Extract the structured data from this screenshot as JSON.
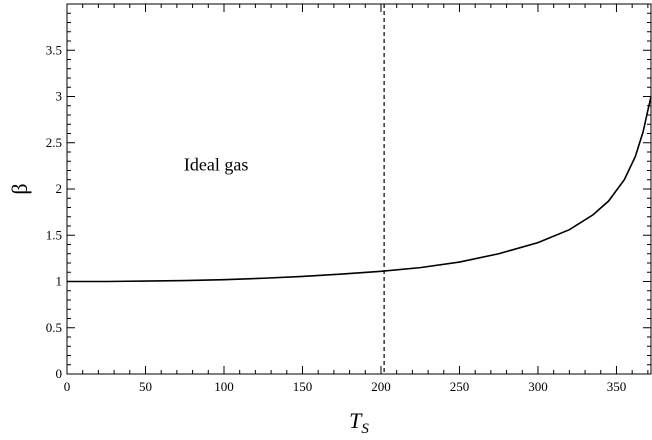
{
  "chart_data": {
    "type": "line",
    "xlabel": "T",
    "xlabel_sub": "S",
    "ylabel": "β",
    "xlim": [
      0,
      372
    ],
    "ylim": [
      0,
      4
    ],
    "xticks": [
      0,
      50,
      100,
      150,
      200,
      250,
      300,
      350
    ],
    "yticks": [
      0,
      0.5,
      1,
      1.5,
      2,
      2.5,
      3,
      3.5
    ],
    "xtick_labels": [
      "0",
      "50",
      "100",
      "150",
      "200",
      "250",
      "300",
      "350"
    ],
    "ytick_labels": [
      "0",
      "0.5",
      "1",
      "1.5",
      "2",
      "2.5",
      "3",
      "3.5"
    ],
    "grid": false,
    "series": [
      {
        "x": [
          0,
          25,
          50,
          75,
          100,
          125,
          150,
          175,
          200,
          225,
          250,
          275,
          300,
          320,
          335,
          345,
          355,
          362,
          367,
          370,
          372
        ],
        "y": [
          1.0,
          1.0,
          1.005,
          1.01,
          1.02,
          1.035,
          1.055,
          1.08,
          1.11,
          1.15,
          1.21,
          1.3,
          1.42,
          1.56,
          1.72,
          1.87,
          2.1,
          2.35,
          2.62,
          2.85,
          3.0
        ]
      }
    ],
    "vertical_line": {
      "x": 202,
      "style": "dashed"
    },
    "annotation": {
      "text": "Ideal gas",
      "x": 95,
      "y": 2.2
    }
  }
}
